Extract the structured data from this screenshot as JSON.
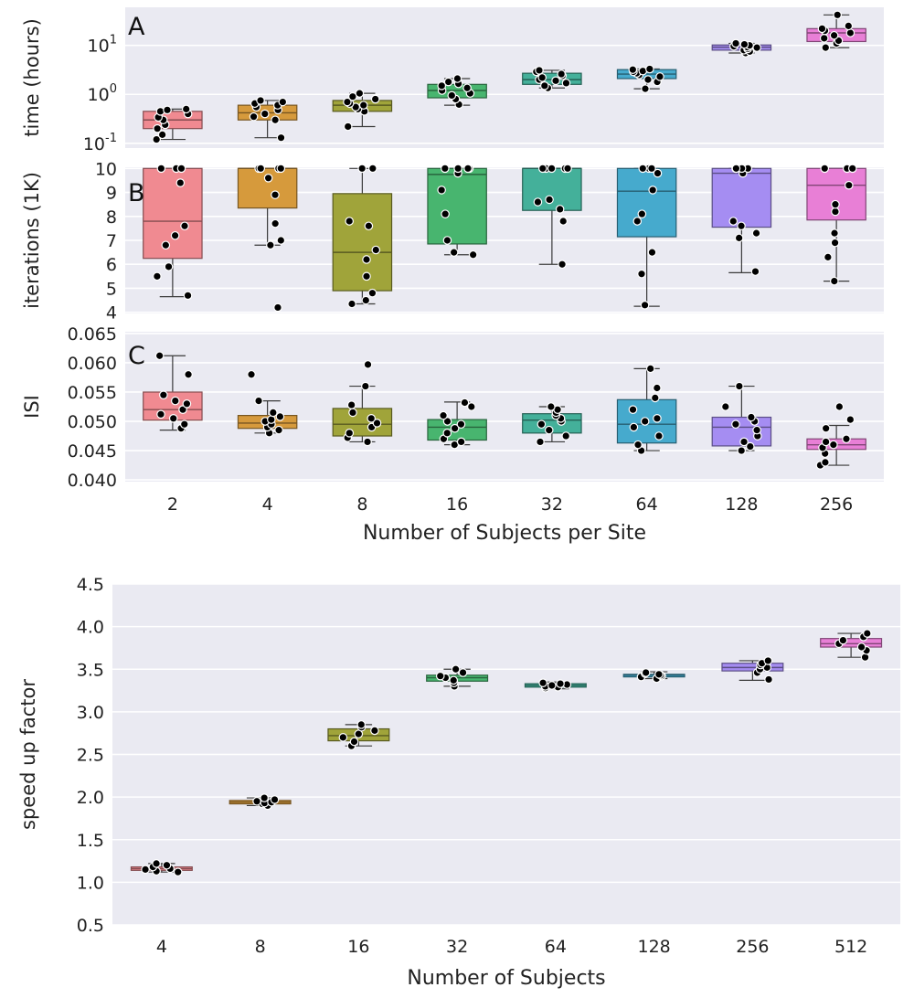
{
  "palette": {
    "panel_bg": "#eaeaf2",
    "grid": "#ffffff",
    "whisker": "#3a3a3a",
    "point": "#000000",
    "text": "#222222"
  },
  "chart_data": [
    {
      "id": "A",
      "type": "box",
      "panel_letter": "A",
      "ylabel": "time (hours)",
      "yscale": "log",
      "ylim": [
        0.08,
        60
      ],
      "yticks": [
        {
          "value": 0.1,
          "base": "10",
          "exp": "-1"
        },
        {
          "value": 1,
          "base": "10",
          "exp": "0"
        },
        {
          "value": 10,
          "base": "10",
          "exp": "1"
        }
      ],
      "categories": [
        "2",
        "4",
        "8",
        "16",
        "32",
        "64",
        "128",
        "256"
      ],
      "colors": [
        "#f08a91",
        "#d69a3c",
        "#a0a43a",
        "#48b56f",
        "#44b09a",
        "#46aacd",
        "#a58df2",
        "#e87fd6"
      ],
      "boxes": [
        {
          "whislo": 0.12,
          "q1": 0.2,
          "med": 0.3,
          "q3": 0.45,
          "whishi": 0.5
        },
        {
          "whislo": 0.13,
          "q1": 0.3,
          "med": 0.42,
          "q3": 0.6,
          "whishi": 0.75
        },
        {
          "whislo": 0.22,
          "q1": 0.45,
          "med": 0.6,
          "q3": 0.75,
          "whishi": 1.05
        },
        {
          "whislo": 0.6,
          "q1": 0.85,
          "med": 1.2,
          "q3": 1.6,
          "whishi": 2.1
        },
        {
          "whislo": 1.35,
          "q1": 1.6,
          "med": 2.0,
          "q3": 2.7,
          "whishi": 3.1
        },
        {
          "whislo": 1.3,
          "q1": 2.1,
          "med": 2.6,
          "q3": 3.2,
          "whishi": 3.3
        },
        {
          "whislo": 7.0,
          "q1": 8.0,
          "med": 9.2,
          "q3": 10.2,
          "whishi": 11.0
        },
        {
          "whislo": 9.0,
          "q1": 12.0,
          "med": 18.0,
          "q3": 22.0,
          "whishi": 42.0
        }
      ],
      "points": [
        [
          0.12,
          0.15,
          0.2,
          0.24,
          0.3,
          0.34,
          0.4,
          0.45,
          0.48,
          0.5
        ],
        [
          0.13,
          0.3,
          0.35,
          0.4,
          0.48,
          0.55,
          0.6,
          0.65,
          0.7,
          0.75
        ],
        [
          0.22,
          0.45,
          0.5,
          0.55,
          0.6,
          0.65,
          0.7,
          0.8,
          0.9,
          1.05
        ],
        [
          0.62,
          0.8,
          0.95,
          1.05,
          1.2,
          1.35,
          1.5,
          1.65,
          1.8,
          2.1
        ],
        [
          1.35,
          1.5,
          1.7,
          1.9,
          2.0,
          2.2,
          2.4,
          2.6,
          2.9,
          3.1
        ],
        [
          1.3,
          1.8,
          2.0,
          2.3,
          2.5,
          2.7,
          2.9,
          3.0,
          3.2,
          3.3
        ],
        [
          7.0,
          7.5,
          8.0,
          8.5,
          9.0,
          9.2,
          9.6,
          10.0,
          10.5,
          11.0
        ],
        [
          9.0,
          11.0,
          12.5,
          14.0,
          16.0,
          18.0,
          20.0,
          22.0,
          25.0,
          42.0
        ]
      ]
    },
    {
      "id": "B",
      "type": "box",
      "panel_letter": "B",
      "ylabel": "iterations (1K)",
      "yscale": "linear",
      "ylim": [
        3.95,
        10.05
      ],
      "yticks": [
        {
          "value": 4,
          "label": "4"
        },
        {
          "value": 5,
          "label": "5"
        },
        {
          "value": 6,
          "label": "6"
        },
        {
          "value": 7,
          "label": "7"
        },
        {
          "value": 8,
          "label": "8"
        },
        {
          "value": 9,
          "label": "9"
        },
        {
          "value": 10,
          "label": "10"
        }
      ],
      "categories": [
        "2",
        "4",
        "8",
        "16",
        "32",
        "64",
        "128",
        "256"
      ],
      "colors": [
        "#f08a91",
        "#d69a3c",
        "#a0a43a",
        "#48b56f",
        "#44b09a",
        "#46aacd",
        "#a58df2",
        "#e87fd6"
      ],
      "boxes": [
        {
          "whislo": 4.65,
          "q1": 6.25,
          "med": 7.8,
          "q3": 10.0,
          "whishi": 10.0
        },
        {
          "whislo": 6.8,
          "q1": 8.35,
          "med": 10.0,
          "q3": 10.0,
          "whishi": 10.0
        },
        {
          "whislo": 4.35,
          "q1": 4.9,
          "med": 6.5,
          "q3": 8.95,
          "whishi": 10.0
        },
        {
          "whislo": 6.4,
          "q1": 6.85,
          "med": 9.75,
          "q3": 10.0,
          "whishi": 10.0
        },
        {
          "whislo": 6.0,
          "q1": 8.25,
          "med": 10.0,
          "q3": 10.0,
          "whishi": 10.0
        },
        {
          "whislo": 4.25,
          "q1": 7.15,
          "med": 9.05,
          "q3": 10.0,
          "whishi": 10.0
        },
        {
          "whislo": 5.65,
          "q1": 7.55,
          "med": 9.8,
          "q3": 10.0,
          "whishi": 10.0
        },
        {
          "whislo": 5.3,
          "q1": 7.85,
          "med": 9.3,
          "q3": 10.0,
          "whishi": 10.0
        }
      ],
      "points": [
        [
          4.7,
          5.5,
          5.9,
          6.8,
          7.2,
          7.6,
          9.4,
          10.0,
          10.0,
          10.0
        ],
        [
          4.2,
          6.8,
          7.0,
          7.7,
          8.9,
          9.6,
          10.0,
          10.0,
          10.0,
          10.0
        ],
        [
          4.35,
          4.5,
          4.8,
          5.5,
          6.2,
          6.6,
          7.6,
          7.8,
          10.0,
          10.0
        ],
        [
          6.4,
          6.5,
          7.0,
          8.1,
          9.1,
          9.8,
          10.0,
          10.0,
          10.0,
          10.0
        ],
        [
          6.0,
          7.8,
          8.3,
          8.6,
          8.7,
          10.0,
          10.0,
          10.0,
          10.0,
          10.0
        ],
        [
          4.3,
          5.6,
          6.5,
          7.8,
          8.1,
          9.1,
          9.8,
          10.0,
          10.0,
          10.0
        ],
        [
          5.7,
          7.1,
          7.3,
          7.6,
          7.8,
          9.8,
          10.0,
          10.0,
          10.0,
          10.0
        ],
        [
          5.3,
          6.3,
          6.9,
          7.3,
          8.2,
          8.5,
          9.3,
          10.0,
          10.0,
          10.0
        ]
      ]
    },
    {
      "id": "C",
      "type": "box",
      "panel_letter": "C",
      "ylabel": "ISI",
      "yscale": "linear",
      "ylim": [
        0.0397,
        0.0653
      ],
      "yticks": [
        {
          "value": 0.04,
          "label": "0.040"
        },
        {
          "value": 0.045,
          "label": "0.045"
        },
        {
          "value": 0.05,
          "label": "0.050"
        },
        {
          "value": 0.055,
          "label": "0.055"
        },
        {
          "value": 0.06,
          "label": "0.060"
        },
        {
          "value": 0.065,
          "label": "0.065"
        }
      ],
      "categories": [
        "2",
        "4",
        "8",
        "16",
        "32",
        "64",
        "128",
        "256"
      ],
      "colors": [
        "#f08a91",
        "#d69a3c",
        "#a0a43a",
        "#48b56f",
        "#44b09a",
        "#46aacd",
        "#a58df2",
        "#e87fd6"
      ],
      "xlabel": "Number of Subjects per Site",
      "boxes": [
        {
          "whislo": 0.0485,
          "q1": 0.0502,
          "med": 0.052,
          "q3": 0.055,
          "whishi": 0.0612
        },
        {
          "whislo": 0.048,
          "q1": 0.0488,
          "med": 0.0497,
          "q3": 0.051,
          "whishi": 0.0535
        },
        {
          "whislo": 0.0465,
          "q1": 0.0475,
          "med": 0.0495,
          "q3": 0.0522,
          "whishi": 0.056
        },
        {
          "whislo": 0.046,
          "q1": 0.0468,
          "med": 0.049,
          "q3": 0.0503,
          "whishi": 0.0533
        },
        {
          "whislo": 0.0465,
          "q1": 0.048,
          "med": 0.0502,
          "q3": 0.0513,
          "whishi": 0.0525
        },
        {
          "whislo": 0.045,
          "q1": 0.0463,
          "med": 0.0495,
          "q3": 0.0537,
          "whishi": 0.059
        },
        {
          "whislo": 0.045,
          "q1": 0.0458,
          "med": 0.049,
          "q3": 0.0507,
          "whishi": 0.056
        },
        {
          "whislo": 0.0425,
          "q1": 0.0452,
          "med": 0.046,
          "q3": 0.047,
          "whishi": 0.0493
        }
      ],
      "points": [
        [
          0.0488,
          0.0495,
          0.0505,
          0.0512,
          0.052,
          0.053,
          0.0535,
          0.0545,
          0.058,
          0.0612
        ],
        [
          0.048,
          0.0485,
          0.049,
          0.0495,
          0.05,
          0.0503,
          0.0508,
          0.0515,
          0.0535,
          0.058
        ],
        [
          0.0465,
          0.0472,
          0.048,
          0.049,
          0.0497,
          0.0505,
          0.0515,
          0.0528,
          0.056,
          0.0597
        ],
        [
          0.046,
          0.0465,
          0.047,
          0.048,
          0.0488,
          0.0495,
          0.05,
          0.051,
          0.0525,
          0.0532
        ],
        [
          0.0465,
          0.0475,
          0.0485,
          0.0495,
          0.05,
          0.0505,
          0.051,
          0.0515,
          0.052,
          0.0525
        ],
        [
          0.045,
          0.046,
          0.0475,
          0.049,
          0.05,
          0.0505,
          0.052,
          0.054,
          0.0557,
          0.059
        ],
        [
          0.045,
          0.0457,
          0.0465,
          0.0475,
          0.0485,
          0.0495,
          0.05,
          0.0507,
          0.0525,
          0.056
        ],
        [
          0.0425,
          0.043,
          0.0445,
          0.0455,
          0.046,
          0.0465,
          0.047,
          0.0488,
          0.0503,
          0.0525
        ]
      ]
    },
    {
      "id": "D",
      "type": "box",
      "panel_letter": "",
      "ylabel": "speed up factor",
      "yscale": "linear",
      "ylim": [
        0.5,
        4.5
      ],
      "yticks": [
        {
          "value": 0.5,
          "label": "0.5"
        },
        {
          "value": 1.0,
          "label": "1.0"
        },
        {
          "value": 1.5,
          "label": "1.5"
        },
        {
          "value": 2.0,
          "label": "2.0"
        },
        {
          "value": 2.5,
          "label": "2.5"
        },
        {
          "value": 3.0,
          "label": "3.0"
        },
        {
          "value": 3.5,
          "label": "3.5"
        },
        {
          "value": 4.0,
          "label": "4.0"
        },
        {
          "value": 4.5,
          "label": "4.5"
        }
      ],
      "categories": [
        "4",
        "8",
        "16",
        "32",
        "64",
        "128",
        "256",
        "512"
      ],
      "colors": [
        "#f08a91",
        "#d69a3c",
        "#a0a43a",
        "#48b56f",
        "#44b09a",
        "#46aacd",
        "#a58df2",
        "#e87fd6"
      ],
      "xlabel": "Number of Subjects",
      "boxes": [
        {
          "whislo": 1.12,
          "q1": 1.14,
          "med": 1.16,
          "q3": 1.18,
          "whishi": 1.22
        },
        {
          "whislo": 1.9,
          "q1": 1.92,
          "med": 1.94,
          "q3": 1.96,
          "whishi": 1.99
        },
        {
          "whislo": 2.6,
          "q1": 2.66,
          "med": 2.72,
          "q3": 2.8,
          "whishi": 2.85
        },
        {
          "whislo": 3.3,
          "q1": 3.36,
          "med": 3.4,
          "q3": 3.43,
          "whishi": 3.5
        },
        {
          "whislo": 3.27,
          "q1": 3.29,
          "med": 3.31,
          "q3": 3.33,
          "whishi": 3.35
        },
        {
          "whislo": 3.39,
          "q1": 3.41,
          "med": 3.43,
          "q3": 3.44,
          "whishi": 3.47
        },
        {
          "whislo": 3.37,
          "q1": 3.48,
          "med": 3.52,
          "q3": 3.57,
          "whishi": 3.6
        },
        {
          "whislo": 3.64,
          "q1": 3.76,
          "med": 3.8,
          "q3": 3.86,
          "whishi": 3.92
        }
      ],
      "points": [
        [
          1.12,
          1.13,
          1.15,
          1.16,
          1.18,
          1.2,
          1.22
        ],
        [
          1.9,
          1.92,
          1.93,
          1.94,
          1.95,
          1.97,
          1.99
        ],
        [
          2.6,
          2.65,
          2.7,
          2.74,
          2.78,
          2.82,
          2.85
        ],
        [
          3.3,
          3.34,
          3.37,
          3.4,
          3.42,
          3.46,
          3.5
        ],
        [
          3.28,
          3.29,
          3.3,
          3.31,
          3.32,
          3.33,
          3.34
        ],
        [
          3.39,
          3.41,
          3.42,
          3.43,
          3.44,
          3.45,
          3.46
        ],
        [
          3.38,
          3.46,
          3.5,
          3.52,
          3.55,
          3.57,
          3.6
        ],
        [
          3.64,
          3.72,
          3.76,
          3.8,
          3.84,
          3.88,
          3.92
        ]
      ]
    }
  ]
}
